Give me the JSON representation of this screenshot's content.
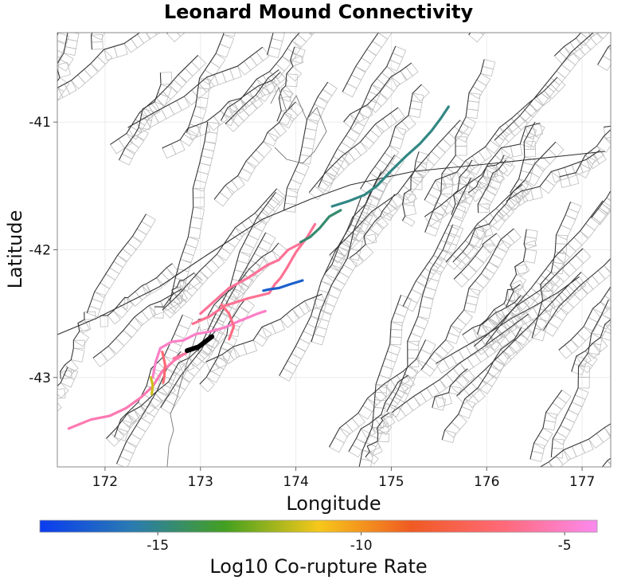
{
  "chart_data": {
    "type": "map",
    "title": "Leonard Mound Connectivity",
    "xlabel": "Longitude",
    "ylabel": "Latitude",
    "xlim": [
      171.5,
      177.3
    ],
    "ylim": [
      -43.7,
      -40.3
    ],
    "x_ticks": [
      172,
      173,
      174,
      175,
      176,
      177
    ],
    "y_ticks": [
      -41,
      -42,
      -43
    ],
    "grid": true,
    "colorbar": {
      "label": "Log10 Co-rupture Rate",
      "range": [
        -17.9,
        -4.2
      ],
      "ticks": [
        -15,
        -10,
        -5
      ],
      "placement": "bottom",
      "colors": [
        "#0a3cf0",
        "#2a7bb0",
        "#44a020",
        "#f6c81a",
        "#f05a22",
        "#ff6a7a",
        "#fb8af0"
      ]
    },
    "source_fault": {
      "name": "Leonard Mound",
      "points": [
        [
          172.86,
          -42.79
        ],
        [
          172.98,
          -42.76
        ],
        [
          173.12,
          -42.68
        ]
      ]
    },
    "ruptures": [
      {
        "log10_rate": -5.4,
        "points": [
          [
            171.62,
            -43.4
          ],
          [
            171.85,
            -43.33
          ],
          [
            172.05,
            -43.3
          ],
          [
            172.22,
            -43.24
          ],
          [
            172.37,
            -43.16
          ],
          [
            172.5,
            -43.07
          ],
          [
            172.6,
            -42.95
          ],
          [
            172.72,
            -42.87
          ],
          [
            172.82,
            -42.82
          ]
        ]
      },
      {
        "log10_rate": -5.0,
        "points": [
          [
            172.5,
            -43.0
          ],
          [
            172.53,
            -42.88
          ],
          [
            172.58,
            -42.77
          ],
          [
            172.7,
            -42.72
          ],
          [
            172.82,
            -42.71
          ],
          [
            172.95,
            -42.66
          ],
          [
            173.1,
            -42.64
          ],
          [
            173.25,
            -42.61
          ],
          [
            173.4,
            -42.56
          ],
          [
            173.5,
            -42.53
          ],
          [
            173.6,
            -42.5
          ],
          [
            173.68,
            -42.48
          ]
        ]
      },
      {
        "log10_rate": -5.8,
        "points": [
          [
            172.72,
            -42.85
          ],
          [
            172.85,
            -42.81
          ]
        ]
      },
      {
        "log10_rate": -6.0,
        "points": [
          [
            172.92,
            -42.58
          ],
          [
            173.1,
            -42.52
          ],
          [
            173.25,
            -42.44
          ],
          [
            173.5,
            -42.38
          ],
          [
            173.72,
            -42.34
          ],
          [
            173.78,
            -42.27
          ],
          [
            173.84,
            -42.22
          ],
          [
            173.9,
            -42.15
          ],
          [
            174.0,
            -42.02
          ],
          [
            174.12,
            -41.9
          ],
          [
            174.2,
            -41.8
          ]
        ]
      },
      {
        "log10_rate": -5.9,
        "points": [
          [
            173.0,
            -42.5
          ],
          [
            173.15,
            -42.4
          ],
          [
            173.3,
            -42.3
          ],
          [
            173.5,
            -42.22
          ],
          [
            173.7,
            -42.12
          ],
          [
            173.82,
            -42.08
          ],
          [
            173.92,
            -42.0
          ],
          [
            174.05,
            -41.95
          ]
        ]
      },
      {
        "log10_rate": -6.3,
        "points": [
          [
            173.22,
            -42.43
          ],
          [
            173.3,
            -42.5
          ],
          [
            173.35,
            -42.6
          ],
          [
            173.3,
            -42.7
          ]
        ]
      },
      {
        "log10_rate": -6.6,
        "points": [
          [
            172.6,
            -42.8
          ],
          [
            172.63,
            -42.9
          ],
          [
            172.62,
            -43.0
          ],
          [
            172.61,
            -43.04
          ]
        ]
      },
      {
        "log10_rate": -11.6,
        "points": [
          [
            172.48,
            -43.0
          ],
          [
            172.5,
            -43.06
          ],
          [
            172.49,
            -43.13
          ]
        ]
      },
      {
        "log10_rate": -16.6,
        "points": [
          [
            173.66,
            -42.32
          ],
          [
            173.72,
            -42.31
          ],
          [
            173.82,
            -42.3
          ],
          [
            173.94,
            -42.27
          ],
          [
            174.07,
            -42.24
          ]
        ]
      },
      {
        "log10_rate": -14.6,
        "points": [
          [
            174.05,
            -41.94
          ],
          [
            174.15,
            -41.9
          ],
          [
            174.25,
            -41.83
          ],
          [
            174.35,
            -41.74
          ],
          [
            174.47,
            -41.69
          ]
        ]
      },
      {
        "log10_rate": -14.9,
        "points": [
          [
            174.38,
            -41.66
          ],
          [
            174.55,
            -41.62
          ],
          [
            174.72,
            -41.57
          ],
          [
            174.85,
            -41.5
          ],
          [
            175.0,
            -41.38
          ],
          [
            175.15,
            -41.27
          ],
          [
            175.3,
            -41.17
          ],
          [
            175.42,
            -41.07
          ],
          [
            175.52,
            -40.97
          ],
          [
            175.6,
            -40.88
          ]
        ]
      }
    ]
  }
}
